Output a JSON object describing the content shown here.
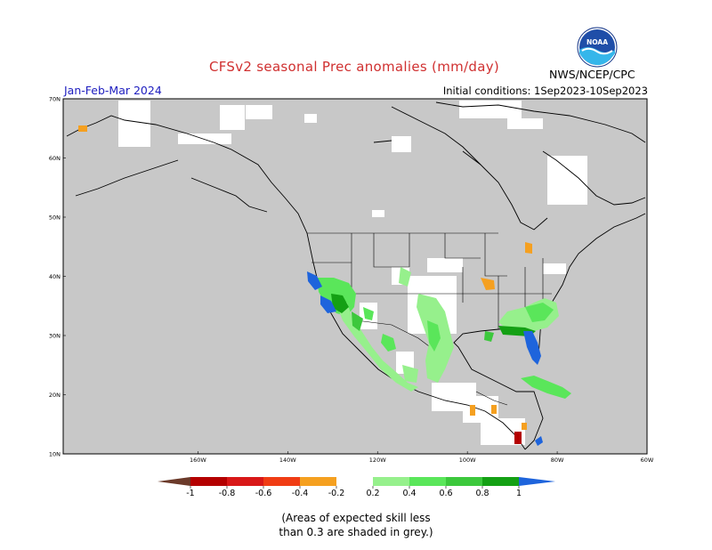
{
  "header": {
    "title": "CFSv2 seasonal Prec anomalies (mm/day)",
    "season": "Jan-Feb-Mar 2024",
    "initial_conditions": "Initial conditions: 1Sep2023-10Sep2023",
    "agency": "NWS/NCEP/CPC",
    "logo_text": "NOAA"
  },
  "map": {
    "region": "North America",
    "background_color": "#c8c8c8",
    "lat_labels": [
      "70N",
      "60N",
      "50N",
      "40N",
      "30N",
      "20N",
      "10N"
    ],
    "lon_labels": [
      "160W",
      "140W",
      "120W",
      "100W",
      "80W",
      "60W"
    ],
    "lat_values": [
      70,
      60,
      50,
      40,
      30,
      20,
      10
    ],
    "lon_values": [
      -160,
      -140,
      -120,
      -100,
      -80,
      -60
    ]
  },
  "colorbar": {
    "labels": [
      "-1",
      "-0.8",
      "-0.6",
      "-0.4",
      "-0.2",
      "0.2",
      "0.4",
      "0.6",
      "0.8",
      "1"
    ],
    "colors": {
      "below_-1": "#6b3a2a",
      "-1_-0.8": "#b40000",
      "-0.8_-0.6": "#d81818",
      "-0.6_-0.4": "#f03c14",
      "-0.4_-0.2": "#f5a020",
      "-0.2_0.2": "#ffffff",
      "0.2_0.4": "#96f08c",
      "0.4_0.6": "#5ae65a",
      "0.6_0.8": "#3cc83c",
      "0.8_1": "#14a014",
      "above_1": "#1e64dc"
    }
  },
  "caption": {
    "line1": "(Areas of expected skill less",
    "line2": "than 0.3 are shaded in grey.)"
  }
}
